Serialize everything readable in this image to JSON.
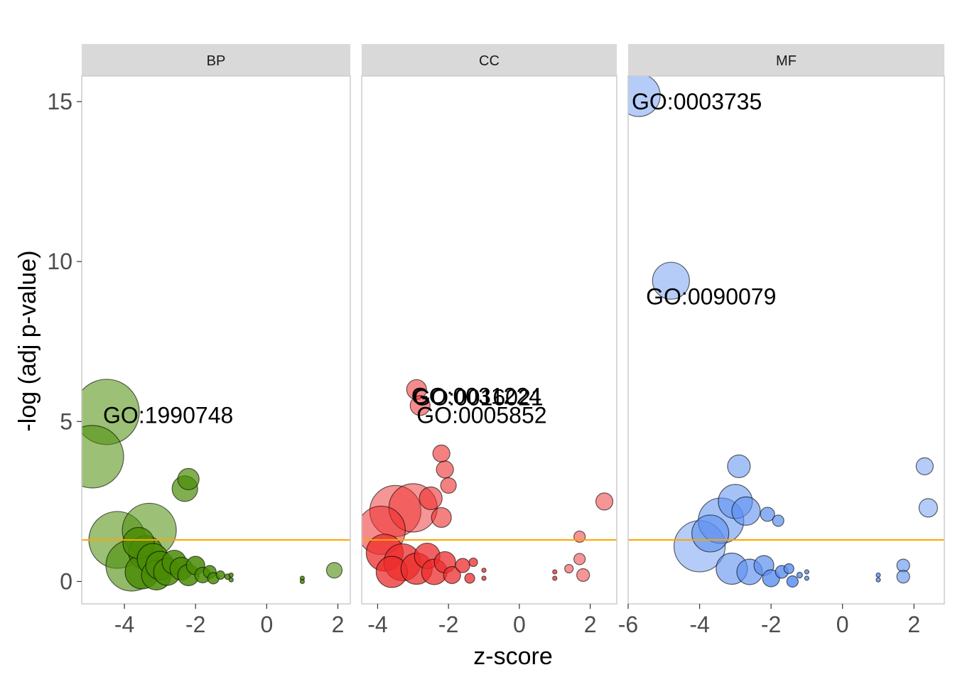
{
  "chart_data": {
    "type": "scatter",
    "xlabel": "z-score",
    "ylabel": "-log (adj p-value)",
    "threshold_line": {
      "y": 1.3,
      "color": "#FFA500"
    },
    "ylim": [
      -0.7,
      15.8
    ],
    "y_ticks": [
      0,
      5,
      10,
      15
    ],
    "facets": [
      {
        "label": "BP",
        "color": "#4A8C06",
        "xlim": [
          -5.2,
          2.35
        ],
        "x_ticks": [
          -4,
          -2,
          0,
          2
        ],
        "labels": [
          {
            "text": "GO:1990748",
            "x": -4.6,
            "y": 5.2
          }
        ],
        "points": [
          {
            "x": -4.5,
            "y": 5.3,
            "size": 46,
            "alpha": 0.55
          },
          {
            "x": -4.9,
            "y": 3.9,
            "size": 44,
            "alpha": 0.55
          },
          {
            "x": -4.2,
            "y": 1.3,
            "size": 40,
            "alpha": 0.55
          },
          {
            "x": -3.3,
            "y": 1.6,
            "size": 38,
            "alpha": 0.55
          },
          {
            "x": -3.8,
            "y": 0.5,
            "size": 36,
            "alpha": 0.6
          },
          {
            "x": -2.3,
            "y": 2.9,
            "size": 18,
            "alpha": 0.7
          },
          {
            "x": -2.2,
            "y": 3.2,
            "size": 15,
            "alpha": 0.7
          },
          {
            "x": -3.6,
            "y": 1.2,
            "size": 22,
            "alpha": 0.8
          },
          {
            "x": -3.4,
            "y": 0.9,
            "size": 24,
            "alpha": 0.8
          },
          {
            "x": -3.2,
            "y": 0.7,
            "size": 22,
            "alpha": 0.85
          },
          {
            "x": -3.0,
            "y": 0.5,
            "size": 20,
            "alpha": 0.85
          },
          {
            "x": -3.5,
            "y": 0.3,
            "size": 24,
            "alpha": 0.85
          },
          {
            "x": -2.8,
            "y": 0.3,
            "size": 19,
            "alpha": 0.85
          },
          {
            "x": -2.6,
            "y": 0.6,
            "size": 17,
            "alpha": 0.85
          },
          {
            "x": -2.4,
            "y": 0.4,
            "size": 16,
            "alpha": 0.85
          },
          {
            "x": -2.2,
            "y": 0.2,
            "size": 15,
            "alpha": 0.85
          },
          {
            "x": -3.1,
            "y": 0.2,
            "size": 21,
            "alpha": 0.85
          },
          {
            "x": -2.0,
            "y": 0.5,
            "size": 13,
            "alpha": 0.85
          },
          {
            "x": -1.8,
            "y": 0.2,
            "size": 11,
            "alpha": 0.85
          },
          {
            "x": -1.6,
            "y": 0.3,
            "size": 9,
            "alpha": 0.85
          },
          {
            "x": -1.5,
            "y": 0.1,
            "size": 8,
            "alpha": 0.85
          },
          {
            "x": -1.3,
            "y": 0.2,
            "size": 6,
            "alpha": 0.85
          },
          {
            "x": -1.1,
            "y": 0.15,
            "size": 4,
            "alpha": 0.85
          },
          {
            "x": -1.0,
            "y": 0.05,
            "size": 3,
            "alpha": 0.85
          },
          {
            "x": -1.0,
            "y": 0.2,
            "size": 3,
            "alpha": 0.85
          },
          {
            "x": 1.0,
            "y": 0.1,
            "size": 3,
            "alpha": 0.85
          },
          {
            "x": 1.0,
            "y": 0.0,
            "size": 3,
            "alpha": 0.85
          },
          {
            "x": 1.9,
            "y": 0.35,
            "size": 11,
            "alpha": 0.6
          }
        ]
      },
      {
        "label": "CC",
        "color": "#EE2C2C",
        "xlim": [
          -4.45,
          2.75
        ],
        "x_ticks": [
          -4,
          -2,
          0,
          2
        ],
        "labels": [
          {
            "text": "GO:0031224",
            "x": -3.05,
            "y": 5.8
          },
          {
            "text": "GO:0016021",
            "x": -3.0,
            "y": 5.75
          },
          {
            "text": "GO:0005852",
            "x": -2.9,
            "y": 5.2
          }
        ],
        "points": [
          {
            "x": -3.5,
            "y": 2.2,
            "size": 36,
            "alpha": 0.5
          },
          {
            "x": -3.0,
            "y": 2.3,
            "size": 34,
            "alpha": 0.5
          },
          {
            "x": -3.9,
            "y": 1.6,
            "size": 34,
            "alpha": 0.55
          },
          {
            "x": -2.9,
            "y": 6.0,
            "size": 14,
            "alpha": 0.55
          },
          {
            "x": -2.8,
            "y": 5.5,
            "size": 14,
            "alpha": 0.55
          },
          {
            "x": -2.2,
            "y": 4.0,
            "size": 12,
            "alpha": 0.6
          },
          {
            "x": -2.1,
            "y": 3.5,
            "size": 12,
            "alpha": 0.6
          },
          {
            "x": -2.0,
            "y": 3.0,
            "size": 11,
            "alpha": 0.6
          },
          {
            "x": -2.5,
            "y": 2.6,
            "size": 16,
            "alpha": 0.6
          },
          {
            "x": -2.2,
            "y": 2.0,
            "size": 14,
            "alpha": 0.6
          },
          {
            "x": -3.8,
            "y": 0.9,
            "size": 26,
            "alpha": 0.75
          },
          {
            "x": -3.3,
            "y": 0.6,
            "size": 26,
            "alpha": 0.75
          },
          {
            "x": -3.6,
            "y": 0.3,
            "size": 22,
            "alpha": 0.75
          },
          {
            "x": -2.9,
            "y": 0.4,
            "size": 22,
            "alpha": 0.75
          },
          {
            "x": -2.6,
            "y": 0.8,
            "size": 18,
            "alpha": 0.75
          },
          {
            "x": -2.4,
            "y": 0.3,
            "size": 18,
            "alpha": 0.75
          },
          {
            "x": -2.1,
            "y": 0.6,
            "size": 15,
            "alpha": 0.75
          },
          {
            "x": -1.9,
            "y": 0.2,
            "size": 12,
            "alpha": 0.75
          },
          {
            "x": -1.6,
            "y": 0.5,
            "size": 10,
            "alpha": 0.75
          },
          {
            "x": -1.4,
            "y": 0.1,
            "size": 7,
            "alpha": 0.75
          },
          {
            "x": -1.3,
            "y": 0.6,
            "size": 6,
            "alpha": 0.75
          },
          {
            "x": -1.0,
            "y": 0.35,
            "size": 3,
            "alpha": 0.75
          },
          {
            "x": -1.0,
            "y": 0.1,
            "size": 3,
            "alpha": 0.75
          },
          {
            "x": 1.0,
            "y": 0.3,
            "size": 3,
            "alpha": 0.75
          },
          {
            "x": 1.0,
            "y": 0.1,
            "size": 3,
            "alpha": 0.75
          },
          {
            "x": 2.4,
            "y": 2.5,
            "size": 12,
            "alpha": 0.5
          },
          {
            "x": 1.7,
            "y": 1.4,
            "size": 8,
            "alpha": 0.5
          },
          {
            "x": 1.7,
            "y": 0.7,
            "size": 8,
            "alpha": 0.5
          },
          {
            "x": 1.4,
            "y": 0.4,
            "size": 6,
            "alpha": 0.5
          },
          {
            "x": 1.8,
            "y": 0.2,
            "size": 9,
            "alpha": 0.5
          }
        ]
      },
      {
        "label": "MF",
        "color": "#5B8FF0",
        "xlim": [
          -6.0,
          2.85
        ],
        "x_ticks": [
          -6,
          -4,
          -2,
          0,
          2
        ],
        "labels": [
          {
            "text": "GO:0003735",
            "x": -5.9,
            "y": 15.0
          },
          {
            "text": "GO:0090079",
            "x": -5.5,
            "y": 8.9
          }
        ],
        "points": [
          {
            "x": -5.7,
            "y": 15.2,
            "size": 30,
            "alpha": 0.45
          },
          {
            "x": -4.8,
            "y": 9.4,
            "size": 26,
            "alpha": 0.45
          },
          {
            "x": -4.0,
            "y": 1.1,
            "size": 36,
            "alpha": 0.45
          },
          {
            "x": -3.4,
            "y": 1.9,
            "size": 32,
            "alpha": 0.55
          },
          {
            "x": -3.0,
            "y": 2.5,
            "size": 24,
            "alpha": 0.55
          },
          {
            "x": -2.9,
            "y": 3.6,
            "size": 16,
            "alpha": 0.55
          },
          {
            "x": -2.7,
            "y": 2.2,
            "size": 20,
            "alpha": 0.6
          },
          {
            "x": -3.7,
            "y": 1.5,
            "size": 26,
            "alpha": 0.6
          },
          {
            "x": -3.1,
            "y": 0.4,
            "size": 22,
            "alpha": 0.6
          },
          {
            "x": -2.6,
            "y": 0.3,
            "size": 18,
            "alpha": 0.65
          },
          {
            "x": -2.1,
            "y": 2.1,
            "size": 10,
            "alpha": 0.7
          },
          {
            "x": -1.8,
            "y": 1.9,
            "size": 8,
            "alpha": 0.7
          },
          {
            "x": -2.2,
            "y": 0.5,
            "size": 14,
            "alpha": 0.7
          },
          {
            "x": -2.0,
            "y": 0.1,
            "size": 12,
            "alpha": 0.8
          },
          {
            "x": -1.7,
            "y": 0.3,
            "size": 9,
            "alpha": 0.8
          },
          {
            "x": -1.5,
            "y": 0.4,
            "size": 7,
            "alpha": 0.8
          },
          {
            "x": -1.4,
            "y": 0.0,
            "size": 8,
            "alpha": 0.85
          },
          {
            "x": -1.2,
            "y": 0.2,
            "size": 4,
            "alpha": 0.8
          },
          {
            "x": -1.0,
            "y": 0.3,
            "size": 3,
            "alpha": 0.8
          },
          {
            "x": -1.0,
            "y": 0.1,
            "size": 3,
            "alpha": 0.8
          },
          {
            "x": 1.0,
            "y": 0.2,
            "size": 3,
            "alpha": 0.8
          },
          {
            "x": 1.0,
            "y": 0.05,
            "size": 3,
            "alpha": 0.8
          },
          {
            "x": 1.7,
            "y": 0.5,
            "size": 9,
            "alpha": 0.6
          },
          {
            "x": 1.7,
            "y": 0.15,
            "size": 9,
            "alpha": 0.6
          },
          {
            "x": 2.3,
            "y": 3.6,
            "size": 12,
            "alpha": 0.45
          },
          {
            "x": 2.4,
            "y": 2.3,
            "size": 13,
            "alpha": 0.45
          }
        ]
      }
    ]
  }
}
